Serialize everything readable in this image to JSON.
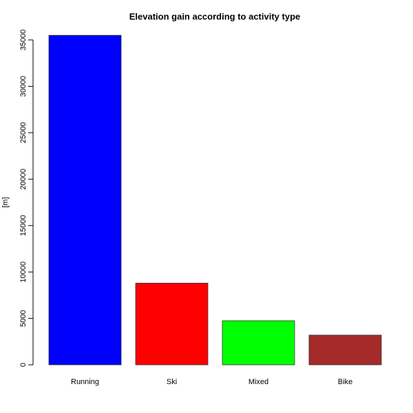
{
  "chart_data": {
    "type": "bar",
    "title": "Elevation gain according to activity type",
    "y_label": "[m]",
    "categories": [
      "Running",
      "Ski",
      "Mixed",
      "Bike"
    ],
    "values": [
      35500,
      8800,
      4750,
      3200
    ],
    "colors": [
      "#0000ff",
      "#ff0000",
      "#00ff00",
      "#a52a2a"
    ],
    "ylim": [
      0,
      35000
    ],
    "yticks": [
      0,
      5000,
      10000,
      15000,
      20000,
      25000,
      30000,
      35000
    ],
    "grid": false
  }
}
